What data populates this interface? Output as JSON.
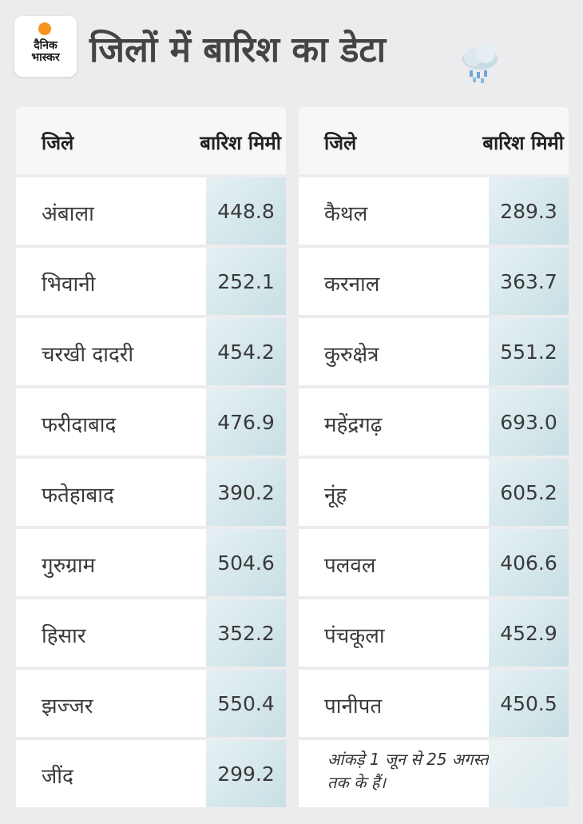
{
  "brand": {
    "line1": "दैनिक",
    "line2": "भास्कर",
    "sun_color": "#f7941d"
  },
  "title": "जिलों में बारिश का डेटा",
  "header": {
    "col1": "जिले",
    "col2": "बारिश मिमी"
  },
  "left_rows": [
    {
      "name": "अंबाला",
      "value": "448.8"
    },
    {
      "name": "भिवानी",
      "value": "252.1"
    },
    {
      "name": "चरखी दादरी",
      "value": "454.2"
    },
    {
      "name": "फरीदाबाद",
      "value": "476.9"
    },
    {
      "name": "फतेहाबाद",
      "value": "390.2"
    },
    {
      "name": "गुरुग्राम",
      "value": "504.6"
    },
    {
      "name": "हिसार",
      "value": "352.2"
    },
    {
      "name": "झज्जर",
      "value": "550.4"
    },
    {
      "name": "जींद",
      "value": "299.2"
    }
  ],
  "right_rows": [
    {
      "name": "कैथल",
      "value": "289.3"
    },
    {
      "name": "करनाल",
      "value": "363.7"
    },
    {
      "name": "कुरुक्षेत्र",
      "value": "551.2"
    },
    {
      "name": "महेंद्रगढ़",
      "value": "693.0"
    },
    {
      "name": "नूंह",
      "value": "605.2"
    },
    {
      "name": "पलवल",
      "value": "406.6"
    },
    {
      "name": "पंचकूला",
      "value": "452.9"
    },
    {
      "name": "पानीपत",
      "value": "450.5"
    }
  ],
  "note": "आंकड़े 1 जून से 25 अगस्त तक के हैं।",
  "colors": {
    "value_cell": "#d4e7eb",
    "background": "#ececee"
  },
  "icons": {
    "weather": "rain-cloud-icon"
  }
}
